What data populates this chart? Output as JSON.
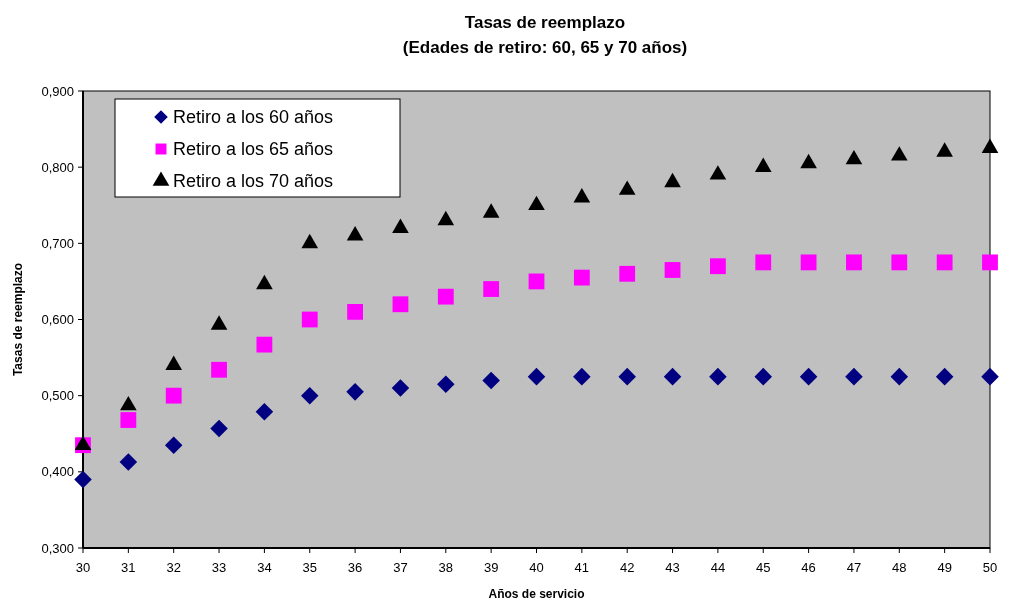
{
  "chart_data": {
    "type": "scatter",
    "title": "Tasas de reemplazo",
    "subtitle": "(Edades de retiro: 60, 65 y 70 años)",
    "xlabel": "Años de servicio",
    "ylabel": "Tasas de reemplazo",
    "x": [
      30,
      31,
      32,
      33,
      34,
      35,
      36,
      37,
      38,
      39,
      40,
      41,
      42,
      43,
      44,
      45,
      46,
      47,
      48,
      49,
      50
    ],
    "xlim": [
      30,
      50
    ],
    "xticks": [
      30,
      31,
      32,
      33,
      34,
      35,
      36,
      37,
      38,
      39,
      40,
      41,
      42,
      43,
      44,
      45,
      46,
      47,
      48,
      49,
      50
    ],
    "ylim": [
      0.3,
      0.9
    ],
    "yticks": [
      {
        "value": 0.3,
        "label": "0,300"
      },
      {
        "value": 0.4,
        "label": "0,400"
      },
      {
        "value": 0.5,
        "label": "0,500"
      },
      {
        "value": 0.6,
        "label": "0,600"
      },
      {
        "value": 0.7,
        "label": "0,700"
      },
      {
        "value": 0.8,
        "label": "0,800"
      },
      {
        "value": 0.9,
        "label": "0,900"
      }
    ],
    "grid": false,
    "legend": "top left",
    "series": [
      {
        "name": "Retiro a los 60 años",
        "color": "#000080",
        "marker": "diamond",
        "values": [
          0.39,
          0.413,
          0.435,
          0.457,
          0.479,
          0.5,
          0.505,
          0.51,
          0.515,
          0.52,
          0.525,
          0.525,
          0.525,
          0.525,
          0.525,
          0.525,
          0.525,
          0.525,
          0.525,
          0.525,
          0.525
        ]
      },
      {
        "name": "Retiro a los 65 años",
        "color": "#ff00ff",
        "marker": "square",
        "values": [
          0.435,
          0.468,
          0.5,
          0.534,
          0.567,
          0.6,
          0.61,
          0.62,
          0.63,
          0.64,
          0.65,
          0.655,
          0.66,
          0.665,
          0.67,
          0.675,
          0.675,
          0.675,
          0.675,
          0.675,
          0.675
        ]
      },
      {
        "name": "Retiro a los 70 años",
        "color": "#000000",
        "marker": "triangle",
        "values": [
          0.435,
          0.487,
          0.54,
          0.593,
          0.646,
          0.7,
          0.71,
          0.72,
          0.73,
          0.74,
          0.75,
          0.76,
          0.77,
          0.78,
          0.79,
          0.8,
          0.805,
          0.81,
          0.815,
          0.82,
          0.825
        ]
      }
    ]
  }
}
